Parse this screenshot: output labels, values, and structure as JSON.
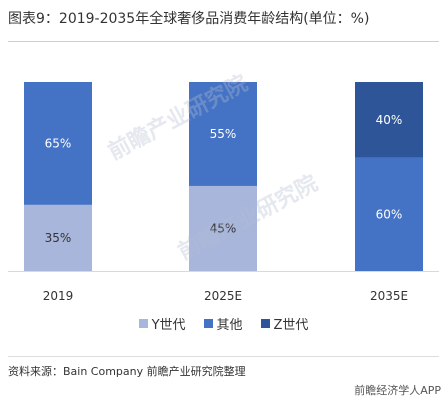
{
  "title": "图表9：2019-2035年全球奢侈品消费年龄结构(单位：%)",
  "source": "资料来源：Bain Company 前瞻产业研究院整理",
  "brand": "前瞻经济学人APP",
  "watermark": "前瞻产业研究院",
  "colors": {
    "y_gen": "#a8b6dc",
    "other": "#4472c4",
    "z_gen": "#2e5597",
    "label_dark": "#333333",
    "label_light": "#ffffff"
  },
  "chart_data": {
    "type": "bar",
    "stacked": true,
    "categories": [
      "2019",
      "2025E",
      "2035E"
    ],
    "series": [
      {
        "name": "Y世代",
        "values": [
          35,
          45,
          0
        ],
        "labels": [
          "35%",
          "45%",
          ""
        ]
      },
      {
        "name": "其他",
        "values": [
          65,
          55,
          60
        ],
        "labels": [
          "65%",
          "55%",
          "60%"
        ]
      },
      {
        "name": "Z世代",
        "values": [
          0,
          0,
          40
        ],
        "labels": [
          "",
          "",
          "40%"
        ]
      }
    ],
    "ylim": [
      0,
      100
    ],
    "grid": false,
    "legend": "bottom"
  }
}
